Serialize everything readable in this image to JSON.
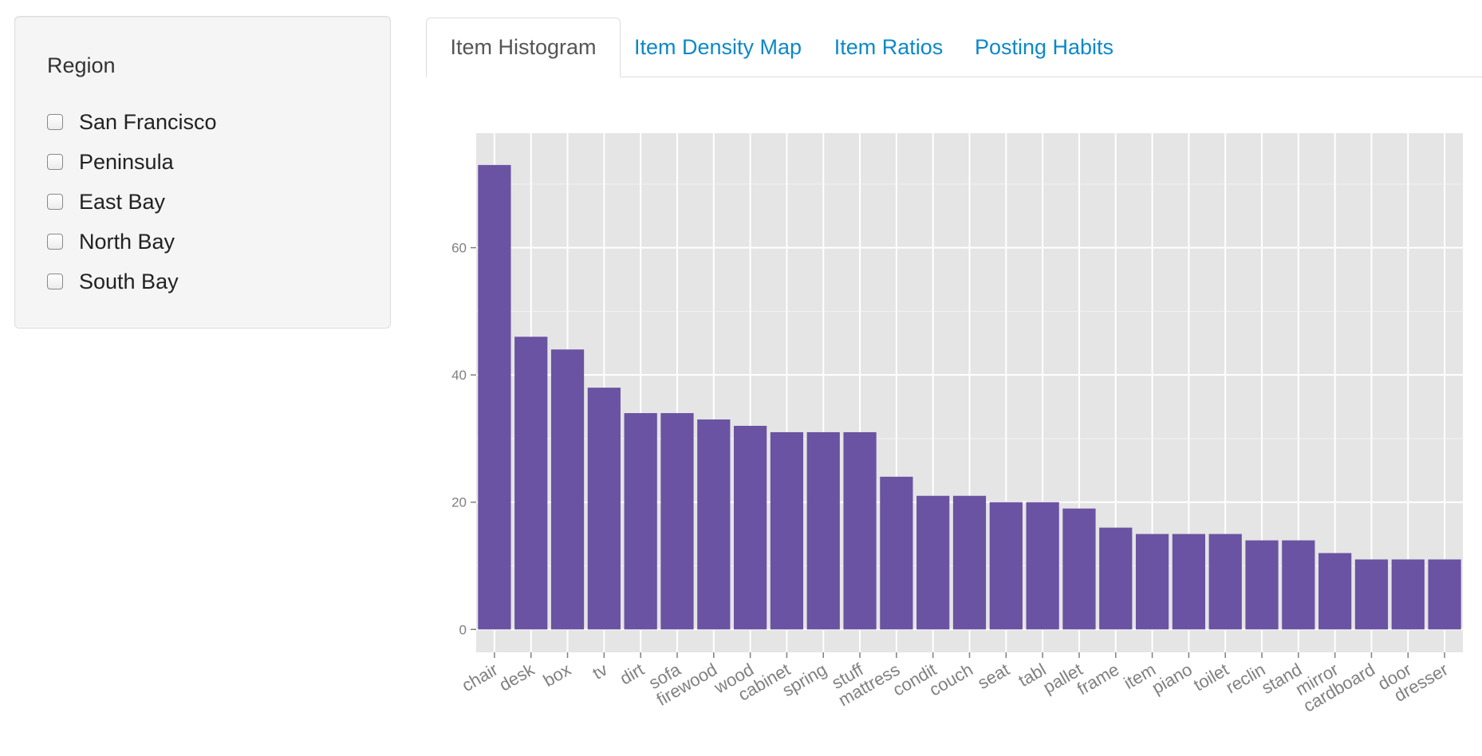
{
  "sidebar": {
    "title": "Region",
    "regions": [
      {
        "label": "San Francisco",
        "checked": false
      },
      {
        "label": "Peninsula",
        "checked": false
      },
      {
        "label": "East Bay",
        "checked": false
      },
      {
        "label": "North Bay",
        "checked": false
      },
      {
        "label": "South Bay",
        "checked": false
      }
    ]
  },
  "tabs": [
    {
      "label": "Item Histogram",
      "active": true
    },
    {
      "label": "Item Density Map",
      "active": false
    },
    {
      "label": "Item Ratios",
      "active": false
    },
    {
      "label": "Posting Habits",
      "active": false
    }
  ],
  "colors": {
    "bar": "#6a53a2",
    "panel_background": "#e5e5e5",
    "tab_link": "#0d88c8"
  },
  "chart_data": {
    "type": "bar",
    "title": "",
    "xlabel": "",
    "ylabel": "",
    "categories": [
      "chair",
      "desk",
      "box",
      "tv",
      "dirt",
      "sofa",
      "firewood",
      "wood",
      "cabinet",
      "spring",
      "stuff",
      "mattress",
      "condit",
      "couch",
      "seat",
      "tabl",
      "pallet",
      "frame",
      "item",
      "piano",
      "toilet",
      "reclin",
      "stand",
      "mirror",
      "cardboard",
      "door",
      "dresser"
    ],
    "values": [
      73,
      46,
      44,
      38,
      34,
      34,
      33,
      32,
      31,
      31,
      31,
      24,
      21,
      21,
      20,
      20,
      19,
      16,
      15,
      15,
      15,
      14,
      14,
      12,
      11,
      11,
      11
    ],
    "y_ticks": [
      0,
      20,
      40,
      60
    ],
    "ylim": [
      -3.6,
      78
    ],
    "grid": true
  }
}
